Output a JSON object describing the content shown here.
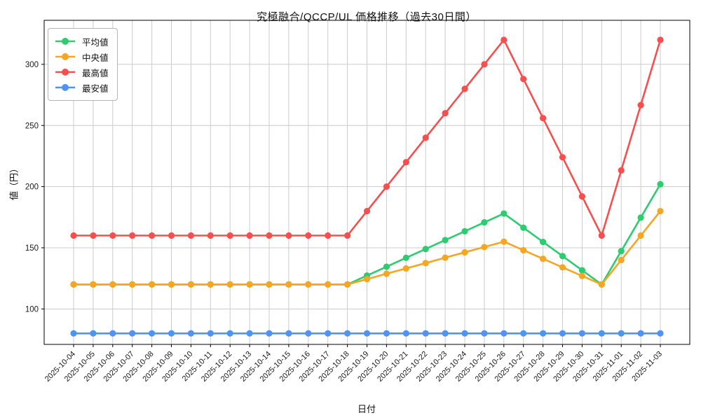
{
  "figure": {
    "background": "#ffffff"
  },
  "chart_data": {
    "type": "line",
    "title": "究極融合/QCCP/UL 価格推移（過去30日間）",
    "xlabel": "日付",
    "ylabel": "値（円）",
    "categories": [
      "2025-10-04",
      "2025-10-05",
      "2025-10-06",
      "2025-10-07",
      "2025-10-08",
      "2025-10-09",
      "2025-10-10",
      "2025-10-11",
      "2025-10-12",
      "2025-10-13",
      "2025-10-14",
      "2025-10-15",
      "2025-10-16",
      "2025-10-17",
      "2025-10-18",
      "2025-10-19",
      "2025-10-20",
      "2025-10-21",
      "2025-10-22",
      "2025-10-23",
      "2025-10-24",
      "2025-10-25",
      "2025-10-26",
      "2025-10-27",
      "2025-10-28",
      "2025-10-29",
      "2025-10-30",
      "2025-10-31",
      "2025-11-01",
      "2025-11-02",
      "2025-11-03"
    ],
    "series": [
      {
        "key": "mean",
        "name": "平均値",
        "color": "#2ECC71",
        "values": [
          120,
          120,
          120,
          120,
          120,
          120,
          120,
          120,
          120,
          120,
          120,
          120,
          120,
          120,
          120,
          127.3,
          134.5,
          141.8,
          149,
          156.3,
          163.5,
          170.8,
          178,
          166.4,
          154.8,
          143.2,
          131.6,
          120,
          147.3,
          174.7,
          202
        ]
      },
      {
        "key": "median",
        "name": "中央値",
        "color": "#F5A623",
        "values": [
          120,
          120,
          120,
          120,
          120,
          120,
          120,
          120,
          120,
          120,
          120,
          120,
          120,
          120,
          120,
          124.4,
          128.8,
          133.1,
          137.5,
          141.9,
          146.3,
          150.6,
          155,
          148,
          141,
          134,
          127,
          120,
          140,
          160,
          180
        ]
      },
      {
        "key": "max",
        "name": "最高値",
        "color": "#F94E4E",
        "values": [
          160,
          160,
          160,
          160,
          160,
          160,
          160,
          160,
          160,
          160,
          160,
          160,
          160,
          160,
          160,
          180,
          200,
          220,
          240,
          260,
          280,
          300,
          320,
          288,
          256,
          224,
          192,
          160,
          213.3,
          266.7,
          320
        ]
      },
      {
        "key": "min",
        "name": "最安値",
        "color": "#4D94F7",
        "values": [
          80,
          80,
          80,
          80,
          80,
          80,
          80,
          80,
          80,
          80,
          80,
          80,
          80,
          80,
          80,
          80,
          80,
          80,
          80,
          80,
          80,
          80,
          80,
          80,
          80,
          80,
          80,
          80,
          80,
          80,
          80
        ]
      }
    ],
    "yticks": [
      100,
      150,
      200,
      250,
      300
    ],
    "ylim": [
      71,
      336
    ],
    "grid": true,
    "grid_color": "#cccccc",
    "axis_color": "#000000",
    "tick_label_color": "#1a1a1a",
    "legend_position": "upper-left"
  }
}
